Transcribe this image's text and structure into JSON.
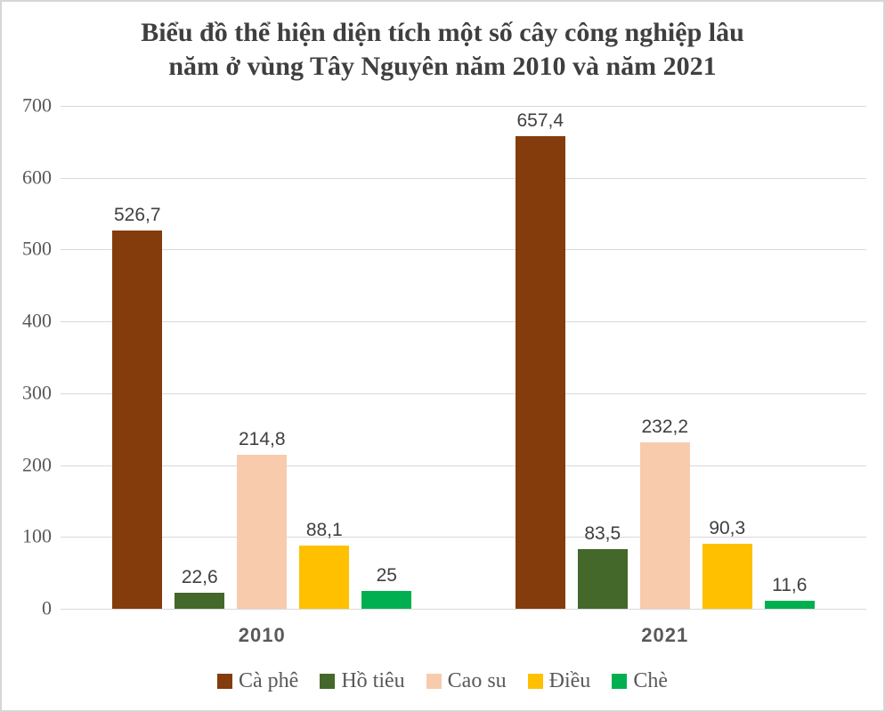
{
  "window": {
    "background": "#FFFFFF",
    "border_color": "#D6D6D6"
  },
  "title": {
    "line1": "Biểu đồ thể hiện diện tích một số cây công nghiệp lâu",
    "line2": "năm ở vùng Tây Nguyên năm 2010 và năm 2021"
  },
  "colors": {
    "gridline": "#D9D9D9",
    "axis_text": "#595959",
    "value_label_text": "#404040",
    "title_text": "#3F3F3F",
    "category_label_text": "#595959",
    "legend_text": "#595959"
  },
  "chart_data": {
    "type": "bar",
    "title": "Biểu đồ thể hiện diện tích một số cây công nghiệp lâu năm ở vùng Tây Nguyên năm 2010 và năm 2021",
    "categories": [
      "2010",
      "2021"
    ],
    "series": [
      {
        "name": "Cà phê",
        "color": "#843C0C",
        "values": [
          526.7,
          657.4
        ],
        "labels": [
          "526,7",
          "657,4"
        ]
      },
      {
        "name": "Hồ tiêu",
        "color": "#44682A",
        "values": [
          22.6,
          83.5
        ],
        "labels": [
          "22,6",
          "83,5"
        ]
      },
      {
        "name": "Cao su",
        "color": "#F8CBAD",
        "values": [
          214.8,
          232.2
        ],
        "labels": [
          "214,8",
          "232,2"
        ]
      },
      {
        "name": "Điều",
        "color": "#FFC000",
        "values": [
          88.1,
          90.3
        ],
        "labels": [
          "88,1",
          "90,3"
        ]
      },
      {
        "name": "Chè",
        "color": "#00B050",
        "values": [
          25,
          11.6
        ],
        "labels": [
          "25",
          "11,6"
        ]
      }
    ],
    "xlabel": "",
    "ylabel": "",
    "ylim": [
      0,
      700
    ],
    "yticks": [
      0,
      100,
      200,
      300,
      400,
      500,
      600,
      700
    ],
    "grid": true,
    "legend_position": "bottom"
  }
}
